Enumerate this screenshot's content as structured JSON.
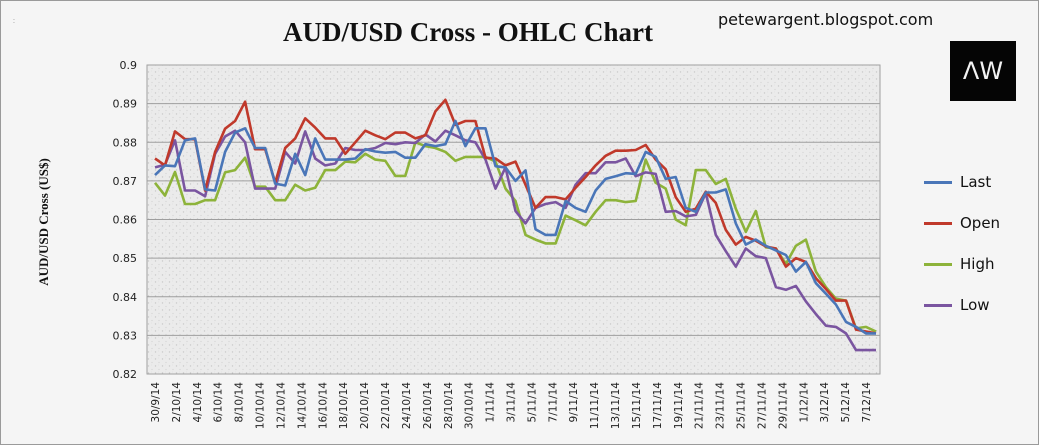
{
  "chart_data": {
    "type": "line",
    "title": "AUD/USD Cross - OHLC Chart",
    "ylabel": "AUD/USD Cross (US$)",
    "xlabel": "",
    "ylim": [
      0.82,
      0.9
    ],
    "y_ticks": [
      "0.82",
      "0.83",
      "0.84",
      "0.85",
      "0.86",
      "0.87",
      "0.88",
      "0.89",
      "0.9"
    ],
    "grid": true,
    "legend_position": "right",
    "x_tick_labels": [
      "30/9/14",
      "2/10/14",
      "4/10/14",
      "6/10/14",
      "8/10/14",
      "10/10/14",
      "12/10/14",
      "14/10/14",
      "16/10/14",
      "18/10/14",
      "20/10/14",
      "22/10/14",
      "24/10/14",
      "26/10/14",
      "28/10/14",
      "30/10/14",
      "1/11/14",
      "3/11/14",
      "5/11/14",
      "7/11/14",
      "9/11/14",
      "11/11/14",
      "13/11/14",
      "15/11/14",
      "17/11/14",
      "19/11/14",
      "21/11/14",
      "23/11/14",
      "25/11/14",
      "27/11/14",
      "29/11/14",
      "1/12/14",
      "3/12/14",
      "5/12/14",
      "7/12/14"
    ],
    "series": [
      {
        "name": "Last",
        "color": "#4a76b8",
        "values": [
          0.8715,
          0.874,
          0.8738,
          0.8805,
          0.881,
          0.8678,
          0.8675,
          0.8775,
          0.8825,
          0.8836,
          0.8785,
          0.8785,
          0.8693,
          0.8688,
          0.877,
          0.8715,
          0.881,
          0.8755,
          0.8755,
          0.8755,
          0.8758,
          0.8782,
          0.8776,
          0.8773,
          0.8775,
          0.876,
          0.876,
          0.8795,
          0.879,
          0.8795,
          0.8855,
          0.879,
          0.8836,
          0.8836,
          0.8738,
          0.8735,
          0.87,
          0.8727,
          0.8575,
          0.856,
          0.856,
          0.8648,
          0.863,
          0.862,
          0.8675,
          0.8705,
          0.8712,
          0.872,
          0.8718,
          0.8775,
          0.8762,
          0.8705,
          0.871,
          0.863,
          0.862,
          0.867,
          0.867,
          0.8678,
          0.859,
          0.8535,
          0.8548,
          0.8532,
          0.852,
          0.8508,
          0.8465,
          0.849,
          0.8435,
          0.8408,
          0.838,
          0.8335,
          0.8322,
          0.8305,
          0.8305
        ]
      },
      {
        "name": "Open",
        "color": "#c0392b",
        "values": [
          0.8758,
          0.874,
          0.8828,
          0.8808,
          0.8808,
          0.8675,
          0.8775,
          0.8835,
          0.8855,
          0.8905,
          0.8782,
          0.8782,
          0.8695,
          0.8785,
          0.881,
          0.8862,
          0.8838,
          0.881,
          0.881,
          0.877,
          0.88,
          0.883,
          0.8818,
          0.8808,
          0.8825,
          0.8825,
          0.881,
          0.8818,
          0.888,
          0.891,
          0.8845,
          0.8855,
          0.8855,
          0.876,
          0.8758,
          0.874,
          0.875,
          0.869,
          0.863,
          0.8658,
          0.8658,
          0.8652,
          0.8682,
          0.871,
          0.874,
          0.8765,
          0.8778,
          0.8778,
          0.878,
          0.8793,
          0.8755,
          0.873,
          0.8658,
          0.862,
          0.8628,
          0.8672,
          0.8643,
          0.8573,
          0.8535,
          0.8555,
          0.8545,
          0.853,
          0.8525,
          0.8478,
          0.85,
          0.849,
          0.8448,
          0.842,
          0.839,
          0.839,
          0.8315,
          0.831,
          0.8305
        ]
      },
      {
        "name": "High",
        "color": "#8db33a",
        "values": [
          0.8695,
          0.8662,
          0.8723,
          0.864,
          0.864,
          0.865,
          0.865,
          0.8722,
          0.8728,
          0.876,
          0.8685,
          0.8685,
          0.865,
          0.865,
          0.869,
          0.8675,
          0.8682,
          0.8728,
          0.8728,
          0.875,
          0.8748,
          0.877,
          0.8755,
          0.8752,
          0.8713,
          0.8713,
          0.88,
          0.879,
          0.8785,
          0.8775,
          0.8752,
          0.8762,
          0.8762,
          0.8762,
          0.875,
          0.868,
          0.8648,
          0.856,
          0.8548,
          0.8538,
          0.8538,
          0.861,
          0.8598,
          0.8585,
          0.862,
          0.865,
          0.865,
          0.8645,
          0.8648,
          0.8755,
          0.8695,
          0.868,
          0.86,
          0.8585,
          0.8728,
          0.8728,
          0.8692,
          0.8705,
          0.8628,
          0.8568,
          0.8622,
          0.8528,
          0.8525,
          0.8485,
          0.8532,
          0.8548,
          0.8465,
          0.8425,
          0.8395,
          0.839,
          0.8318,
          0.8322,
          0.831
        ]
      },
      {
        "name": "Low",
        "color": "#7a55a0",
        "values": [
          0.8735,
          0.8742,
          0.8805,
          0.8675,
          0.8675,
          0.866,
          0.877,
          0.8815,
          0.883,
          0.88,
          0.868,
          0.868,
          0.868,
          0.8775,
          0.8745,
          0.8828,
          0.8758,
          0.874,
          0.8745,
          0.8785,
          0.878,
          0.878,
          0.8785,
          0.8798,
          0.8795,
          0.88,
          0.8798,
          0.882,
          0.8802,
          0.883,
          0.8818,
          0.8805,
          0.88,
          0.8755,
          0.868,
          0.8735,
          0.8622,
          0.859,
          0.863,
          0.864,
          0.8645,
          0.863,
          0.869,
          0.872,
          0.872,
          0.8748,
          0.8748,
          0.8758,
          0.8712,
          0.8722,
          0.8718,
          0.862,
          0.8622,
          0.8608,
          0.8612,
          0.8668,
          0.856,
          0.8518,
          0.8478,
          0.8525,
          0.8505,
          0.85,
          0.8425,
          0.8418,
          0.8428,
          0.8388,
          0.8355,
          0.8325,
          0.8322,
          0.8305,
          0.8262,
          0.8262,
          0.8262
        ]
      }
    ]
  },
  "header": {
    "blog_text": "petewargent.blogspot.com",
    "logo_text": "ΛW",
    "corner_mark": ":"
  }
}
